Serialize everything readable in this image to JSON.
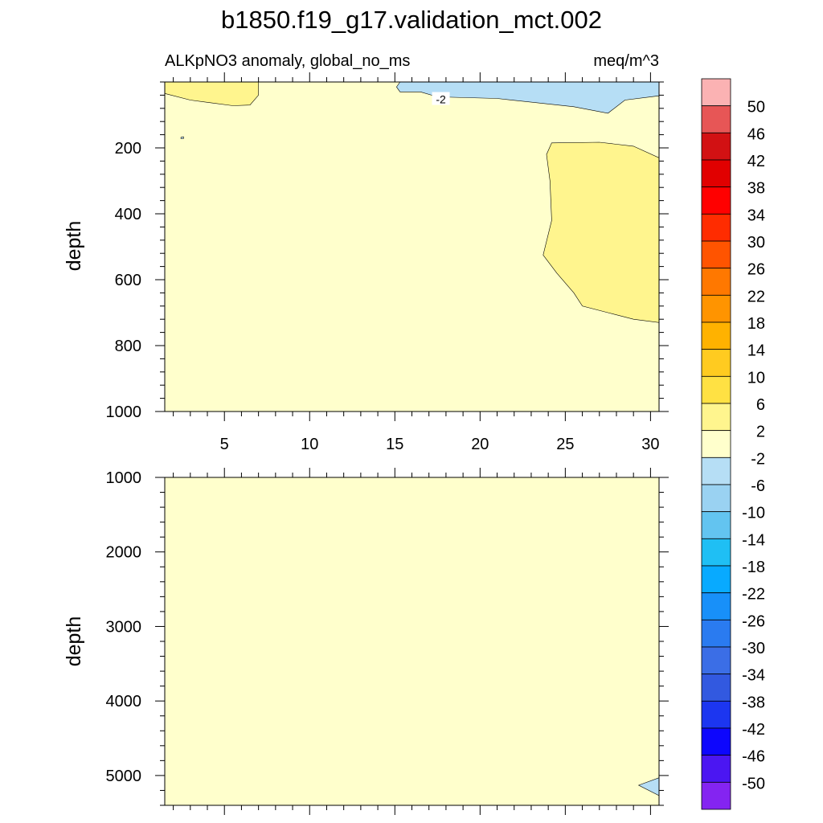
{
  "chart_data": {
    "type": "heatmap",
    "title": "b1850.f19_g17.validation_mct.002",
    "subtitle_left": "ALKpNO3 anomaly, global_no_ms",
    "subtitle_right": "meq/m^3",
    "xlim": [
      1.5,
      30.5
    ],
    "x_ticks": [
      5,
      10,
      15,
      20,
      25,
      30
    ],
    "x_tick_labels": [
      "5",
      "10",
      "15",
      "20",
      "25",
      "30"
    ],
    "top_panel": {
      "ylabel": "depth",
      "ylim": [
        0,
        1000
      ],
      "y_ticks": [
        200,
        400,
        600,
        800,
        1000
      ],
      "y_tick_labels": [
        "200",
        "400",
        "600",
        "800",
        "1000"
      ],
      "background_level": "-2 to 2",
      "contour_label": "-2",
      "regions": [
        {
          "name": "surface-positive-left",
          "level": "2 to 6",
          "points": [
            [
              1.5,
              35
            ],
            [
              3,
              55
            ],
            [
              5.5,
              72
            ],
            [
              6.5,
              70
            ],
            [
              7,
              40
            ],
            [
              7,
              0
            ],
            [
              1.5,
              0
            ]
          ]
        },
        {
          "name": "surface-negative-right",
          "level": "-6 to -2",
          "points": [
            [
              15.3,
              0
            ],
            [
              30.5,
              0
            ],
            [
              30.5,
              42
            ],
            [
              28.5,
              55
            ],
            [
              27.5,
              95
            ],
            [
              25.5,
              75
            ],
            [
              21,
              50
            ],
            [
              17.5,
              45
            ],
            [
              16.5,
              30
            ],
            [
              15.3,
              30
            ],
            [
              15.1,
              15
            ]
          ]
        },
        {
          "name": "subsurface-positive-right",
          "level": "2 to 6",
          "points": [
            [
              24.2,
              185
            ],
            [
              27,
              183
            ],
            [
              29,
              195
            ],
            [
              30.5,
              230
            ],
            [
              30.5,
              730
            ],
            [
              29,
              720
            ],
            [
              27.5,
              700
            ],
            [
              26,
              680
            ],
            [
              25.5,
              640
            ],
            [
              24.5,
              580
            ],
            [
              23.7,
              525
            ],
            [
              24.2,
              420
            ],
            [
              24.1,
              300
            ],
            [
              23.9,
              220
            ]
          ]
        },
        {
          "name": "small-negative-dot",
          "level": "-6 to -2",
          "points": [
            [
              2.45,
              168
            ],
            [
              2.6,
              166
            ],
            [
              2.6,
              172
            ],
            [
              2.45,
              172
            ]
          ]
        }
      ]
    },
    "bottom_panel": {
      "ylabel": "depth",
      "ylim": [
        1000,
        5400
      ],
      "y_ticks": [
        1000,
        2000,
        3000,
        4000,
        5000
      ],
      "y_tick_labels": [
        "1000",
        "2000",
        "3000",
        "4000",
        "5000"
      ],
      "background_level": "-2 to 2",
      "regions": [
        {
          "name": "deep-negative-corner",
          "level": "-6 to -2",
          "points": [
            [
              30.5,
              5030
            ],
            [
              30.5,
              5270
            ],
            [
              29.3,
              5130
            ]
          ]
        }
      ]
    },
    "colorbar": {
      "labels": [
        "50",
        "46",
        "42",
        "38",
        "34",
        "30",
        "26",
        "22",
        "18",
        "14",
        "10",
        "6",
        "2",
        "-2",
        "-6",
        "-10",
        "-14",
        "-18",
        "-22",
        "-26",
        "-30",
        "-34",
        "-38",
        "-42",
        "-46",
        "-50"
      ],
      "colors": [
        "#fbb2b3",
        "#e75656",
        "#d21113",
        "#e10000",
        "#ff0000",
        "#ff2c00",
        "#ff5400",
        "#ff7800",
        "#ff9400",
        "#ffb200",
        "#ffcb20",
        "#ffe143",
        "#fff58e",
        "#ffffcc",
        "#b6def5",
        "#9ad2f2",
        "#63c4f0",
        "#1fbff4",
        "#08aaff",
        "#1890f9",
        "#2a7bf0",
        "#3b6ee6",
        "#3259e0",
        "#1c36f0",
        "#0d06fd",
        "#4b16f2",
        "#8424f1"
      ]
    }
  }
}
